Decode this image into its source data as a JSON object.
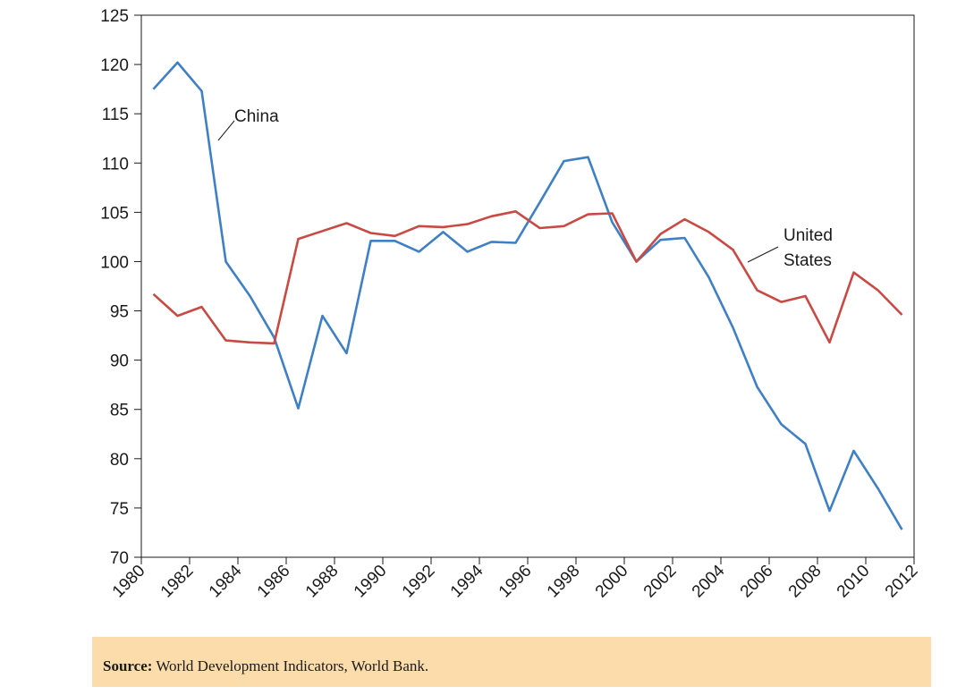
{
  "chart_data": {
    "type": "line",
    "title": "",
    "xlabel": "",
    "ylabel": "",
    "xlim": [
      1980,
      2012
    ],
    "ylim": [
      70,
      125
    ],
    "x_ticks": [
      "1980",
      "1982",
      "1984",
      "1986",
      "1988",
      "1990",
      "1992",
      "1994",
      "1996",
      "1998",
      "2000",
      "2002",
      "2004",
      "2006",
      "2008",
      "2010",
      "2012"
    ],
    "y_ticks": [
      "70",
      "75",
      "80",
      "85",
      "90",
      "95",
      "100",
      "105",
      "110",
      "115",
      "120",
      "125"
    ],
    "grid": false,
    "x": [
      1980.5,
      1981.5,
      1982.5,
      1983.5,
      1984.5,
      1985.5,
      1986.5,
      1987.5,
      1988.5,
      1989.5,
      1990.5,
      1991.5,
      1992.5,
      1993.5,
      1994.5,
      1995.5,
      1996.5,
      1997.5,
      1998.5,
      1999.5,
      2000.5,
      2001.5,
      2002.5,
      2003.5,
      2004.5,
      2005.5,
      2006.5,
      2007.5,
      2008.5,
      2009.5,
      2010.5,
      2011.5
    ],
    "series": [
      {
        "name": "China",
        "color": "#3f7fc4",
        "values": [
          117.5,
          120.2,
          117.3,
          100.0,
          96.5,
          92.3,
          85.1,
          94.5,
          90.7,
          102.1,
          102.1,
          101.0,
          103.0,
          101.0,
          102.0,
          101.9,
          106.0,
          110.2,
          110.6,
          104.0,
          100.0,
          102.2,
          102.4,
          98.4,
          93.3,
          87.3,
          83.5,
          81.5,
          74.7,
          80.8,
          77.0,
          72.8
        ]
      },
      {
        "name": "United\nStates",
        "color": "#c84a44",
        "values": [
          96.7,
          94.5,
          95.4,
          92.0,
          91.8,
          91.7,
          102.3,
          103.1,
          103.9,
          102.9,
          102.6,
          103.6,
          103.5,
          103.8,
          104.6,
          105.1,
          103.4,
          103.6,
          104.8,
          104.9,
          100.0,
          102.8,
          104.3,
          103.0,
          101.2,
          97.1,
          95.9,
          96.5,
          91.8,
          98.9,
          97.1,
          94.6
        ]
      }
    ],
    "annotations": [
      {
        "series": "China",
        "label_lines": [
          "China"
        ]
      },
      {
        "series": "United States",
        "label_lines": [
          "United",
          "States"
        ]
      }
    ]
  },
  "source": {
    "label": "Source:",
    "text": " World Development Indicators, World Bank."
  }
}
